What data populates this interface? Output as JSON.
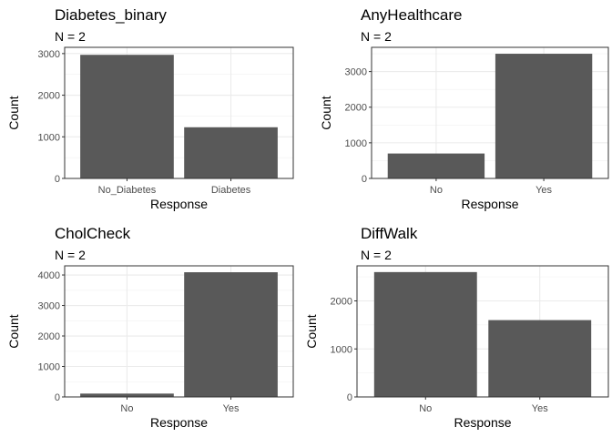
{
  "chart_data": [
    {
      "type": "bar",
      "title": "Diabetes_binary",
      "subtitle": "N = 2",
      "xlabel": "Response",
      "ylabel": "Count",
      "categories": [
        "No_Diabetes",
        "Diabetes"
      ],
      "values": [
        2970,
        1230
      ],
      "ylim": [
        0,
        3150
      ],
      "yticks": [
        0,
        1000,
        2000,
        3000
      ],
      "bar_color": "#595959",
      "grid": true
    },
    {
      "type": "bar",
      "title": "AnyHealthcare",
      "subtitle": "N = 2",
      "xlabel": "Response",
      "ylabel": "Count",
      "categories": [
        "No",
        "Yes"
      ],
      "values": [
        700,
        3500
      ],
      "ylim": [
        0,
        3680
      ],
      "yticks": [
        0,
        1000,
        2000,
        3000
      ],
      "bar_color": "#595959",
      "grid": true
    },
    {
      "type": "bar",
      "title": "CholCheck",
      "subtitle": "N = 2",
      "xlabel": "Response",
      "ylabel": "Count",
      "categories": [
        "No",
        "Yes"
      ],
      "values": [
        110,
        4090
      ],
      "ylim": [
        0,
        4300
      ],
      "yticks": [
        0,
        1000,
        2000,
        3000,
        4000
      ],
      "bar_color": "#595959",
      "grid": true
    },
    {
      "type": "bar",
      "title": "DiffWalk",
      "subtitle": "N = 2",
      "xlabel": "Response",
      "ylabel": "Count",
      "categories": [
        "No",
        "Yes"
      ],
      "values": [
        2600,
        1600
      ],
      "ylim": [
        0,
        2730
      ],
      "yticks": [
        0,
        1000,
        2000
      ],
      "bar_color": "#595959",
      "grid": true
    }
  ]
}
